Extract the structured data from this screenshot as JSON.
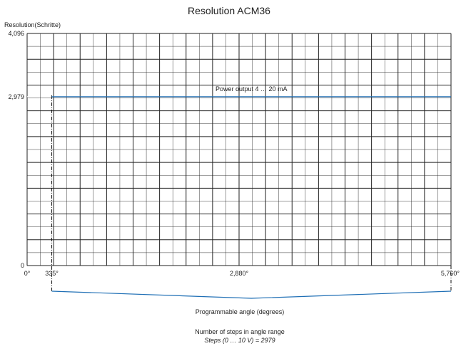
{
  "chart_data": {
    "type": "line",
    "title": "Resolution ACM36",
    "ylabel": "Resolution(Schritte)",
    "xlabel": "Programmable angle (degrees)",
    "xlim": [
      0,
      5760
    ],
    "ylim": [
      0,
      4096
    ],
    "x_ticks": [
      {
        "value": 0,
        "label": "0°"
      },
      {
        "value": 335,
        "label": "335°"
      },
      {
        "value": 2880,
        "label": "2,880°"
      },
      {
        "value": 5760,
        "label": "5,760°"
      }
    ],
    "y_ticks": [
      {
        "value": 0,
        "label": "0"
      },
      {
        "value": 2979,
        "label": "2,979"
      },
      {
        "value": 4096,
        "label": "4,096"
      }
    ],
    "series": [
      {
        "name": "Power output 4 … 20 mA",
        "color": "#1f6fb5",
        "x": [
          335,
          5760
        ],
        "y": [
          2979,
          2979
        ]
      }
    ],
    "range_start": 335,
    "range_end": 5760,
    "grid": true,
    "footer_line1": "Number of steps in angle range",
    "footer_line2": "Steps (0 … 10 V) = 2979",
    "colors": {
      "accent": "#1f6fb5",
      "grid": "#222222"
    }
  }
}
